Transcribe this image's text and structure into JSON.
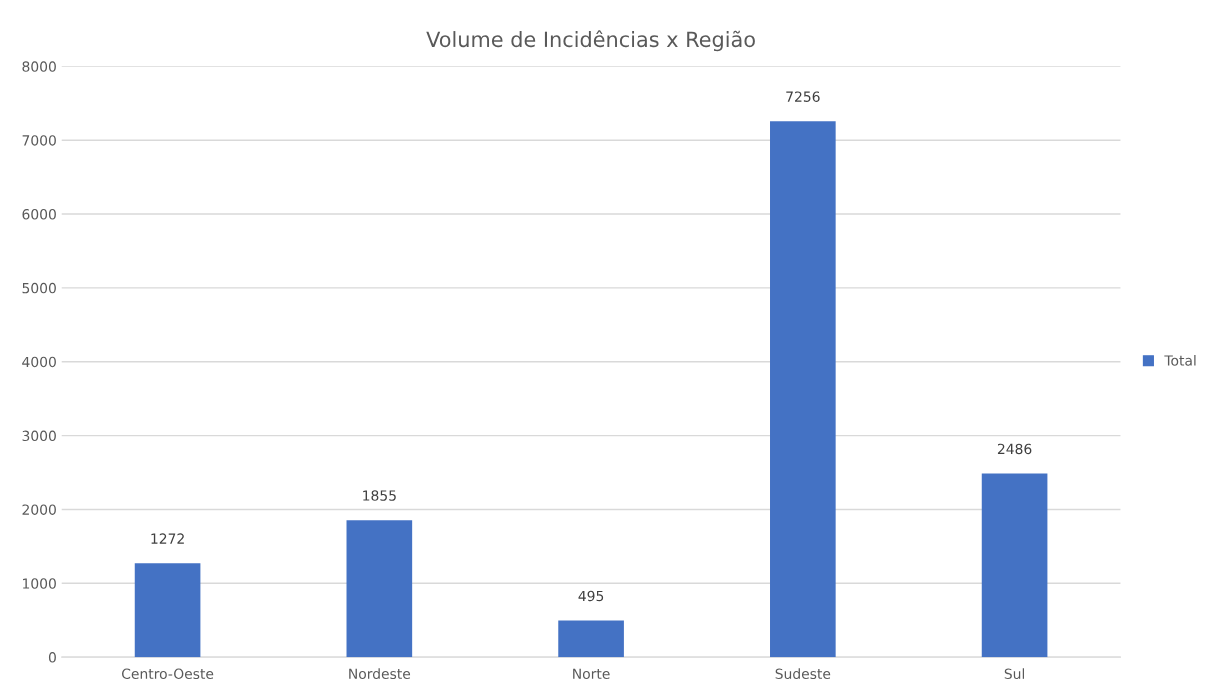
{
  "chart_data": {
    "type": "bar",
    "title": "Volume de Incidências x Região",
    "categories": [
      "Centro-Oeste",
      "Nordeste",
      "Norte",
      "Sudeste",
      "Sul"
    ],
    "series": [
      {
        "name": "Total",
        "color": "#4472c4",
        "values": [
          1272,
          1855,
          495,
          7256,
          2486
        ]
      }
    ],
    "ylim": [
      0,
      8000
    ],
    "yticks": [
      0,
      1000,
      2000,
      3000,
      4000,
      5000,
      6000,
      7000,
      8000
    ],
    "grid": "y",
    "legend": "right",
    "data_labels": true
  }
}
